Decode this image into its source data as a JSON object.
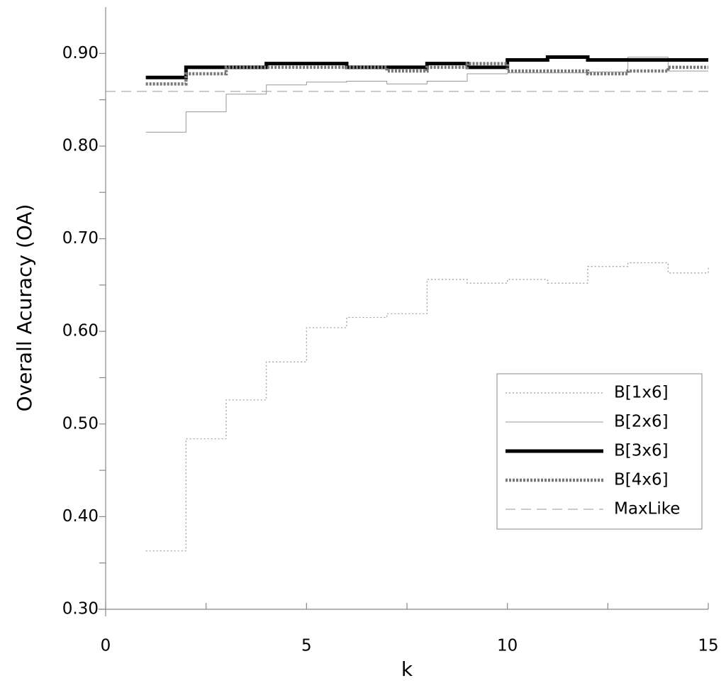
{
  "chart_data": {
    "type": "line",
    "step": "post",
    "xlabel": "k",
    "ylabel": "Overall Acuracy (OA)",
    "xlim": [
      0,
      15
    ],
    "xticks": [
      0,
      5,
      10,
      15
    ],
    "xminorticks": [
      2.5,
      7.5,
      12.5
    ],
    "ylim": [
      0.3,
      0.95
    ],
    "yticks": [
      {
        "value": 0.3,
        "label": "0.30"
      },
      {
        "value": 0.4,
        "label": "0.40"
      },
      {
        "value": 0.5,
        "label": "0.50"
      },
      {
        "value": 0.6,
        "label": "0.60"
      },
      {
        "value": 0.7,
        "label": "0.70"
      },
      {
        "value": 0.8,
        "label": "0.80"
      },
      {
        "value": 0.9,
        "label": "0.90"
      }
    ],
    "yminorticks": [
      0.35,
      0.45,
      0.55,
      0.65,
      0.75,
      0.85
    ],
    "legend": "lower right",
    "x": [
      1,
      2,
      3,
      4,
      5,
      6,
      7,
      8,
      9,
      10,
      11,
      12,
      13,
      14,
      15
    ],
    "series": [
      {
        "name": "B[1x6]",
        "color": "#999999",
        "width": 1.2,
        "dash": "2,3",
        "values": [
          0.363,
          0.484,
          0.526,
          0.567,
          0.604,
          0.615,
          0.619,
          0.656,
          0.652,
          0.656,
          0.652,
          0.67,
          0.674,
          0.663,
          0.67
        ]
      },
      {
        "name": "B[2x6]",
        "color": "#999999",
        "width": 1,
        "dash": "none",
        "values": [
          0.815,
          0.837,
          0.856,
          0.866,
          0.869,
          0.87,
          0.867,
          0.87,
          0.878,
          0.879,
          0.879,
          0.88,
          0.896,
          0.881,
          0.881
        ]
      },
      {
        "name": "B[3x6]",
        "color": "#000000",
        "width": 5,
        "dash": "none",
        "values": [
          0.874,
          0.885,
          0.885,
          0.889,
          0.889,
          0.885,
          0.885,
          0.889,
          0.885,
          0.893,
          0.896,
          0.893,
          0.893,
          0.893,
          0.893
        ]
      },
      {
        "name": "B[4x6]",
        "color": "#777777",
        "width": 4.5,
        "dash": "3,2",
        "values": [
          0.867,
          0.878,
          0.885,
          0.885,
          0.885,
          0.885,
          0.881,
          0.885,
          0.889,
          0.881,
          0.881,
          0.878,
          0.881,
          0.885,
          0.885
        ]
      },
      {
        "name": "MaxLike",
        "color": "#999999",
        "width": 1,
        "dash": "14,8",
        "x": [
          0,
          15
        ],
        "values": [
          0.859,
          0.859
        ]
      }
    ]
  }
}
